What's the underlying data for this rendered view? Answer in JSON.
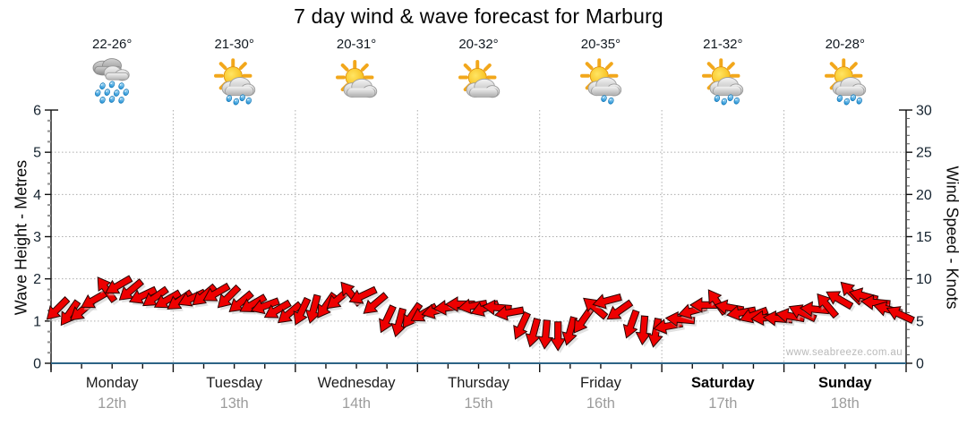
{
  "title": "7 day wind & wave forecast for Marburg",
  "watermark": "www.seabreeze.com.au",
  "axes": {
    "left": {
      "label": "Wave Height - Metres"
    },
    "right": {
      "label": "Wind Speed - Knots"
    }
  },
  "days": [
    {
      "label": "Monday",
      "date": "12th",
      "temp": "22-26°",
      "icon": "rain",
      "weekend": false
    },
    {
      "label": "Tuesday",
      "date": "13th",
      "temp": "21-30°",
      "icon": "sun-cloud-rain",
      "weekend": false
    },
    {
      "label": "Wednesday",
      "date": "14th",
      "temp": "20-31°",
      "icon": "sun-cloud",
      "weekend": false
    },
    {
      "label": "Thursday",
      "date": "15th",
      "temp": "20-32°",
      "icon": "sun-cloud",
      "weekend": false
    },
    {
      "label": "Friday",
      "date": "16th",
      "temp": "20-35°",
      "icon": "sun-cloud-drizzle",
      "weekend": false
    },
    {
      "label": "Saturday",
      "date": "17th",
      "temp": "21-32°",
      "icon": "sun-cloud-rain",
      "weekend": true
    },
    {
      "label": "Sunday",
      "date": "18th",
      "temp": "20-28°",
      "icon": "sun-cloud-rain",
      "weekend": true
    }
  ],
  "chart_data": {
    "type": "scatter",
    "subtype": "wind-direction-arrows",
    "title": "7 day wind & wave forecast for Marburg",
    "categories": [
      "Monday 12th",
      "Tuesday 13th",
      "Wednesday 14th",
      "Thursday 15th",
      "Friday 16th",
      "Saturday 17th",
      "Sunday 18th"
    ],
    "samples_per_day": 10,
    "y_left": {
      "label": "Wave Height - Metres",
      "min": 0,
      "max": 6,
      "tick_step": 1,
      "minor_step": 0.25
    },
    "y_right": {
      "label": "Wind Speed - Knots",
      "min": 0,
      "max": 30,
      "tick_step": 5,
      "minor_step": 1
    },
    "grid": true,
    "marker": "arrow",
    "marker_color": "#ee0000",
    "wind_knots": [
      6.4,
      5.9,
      6.2,
      7.5,
      8.8,
      9.2,
      8.6,
      8.0,
      7.8,
      7.5,
      7.4,
      7.7,
      8.0,
      8.3,
      7.8,
      7.2,
      7.0,
      6.8,
      6.3,
      5.9,
      6.1,
      6.4,
      6.8,
      7.6,
      8.3,
      8.0,
      7.0,
      5.2,
      4.8,
      5.6,
      5.9,
      6.2,
      6.6,
      7.0,
      6.8,
      6.5,
      6.6,
      6.0,
      4.4,
      3.6,
      3.4,
      3.2,
      3.8,
      5.0,
      6.6,
      7.4,
      6.2,
      4.6,
      3.9,
      3.6,
      4.4,
      5.2,
      6.2,
      6.9,
      7.3,
      6.6,
      6.0,
      5.7,
      5.4,
      5.3,
      5.6,
      6.0,
      6.4,
      6.9,
      7.6,
      8.4,
      8.0,
      7.2,
      6.4,
      5.8
    ],
    "wind_dir_deg": [
      135,
      125,
      140,
      150,
      235,
      150,
      140,
      155,
      145,
      150,
      145,
      155,
      140,
      150,
      135,
      140,
      150,
      160,
      150,
      140,
      115,
      105,
      125,
      140,
      230,
      155,
      140,
      115,
      105,
      125,
      150,
      165,
      175,
      180,
      170,
      160,
      185,
      170,
      115,
      105,
      95,
      90,
      105,
      125,
      220,
      165,
      145,
      110,
      95,
      100,
      170,
      185,
      165,
      180,
      235,
      190,
      170,
      160,
      175,
      185,
      190,
      205,
      185,
      230,
      210,
      225,
      195,
      185,
      195,
      205
    ]
  },
  "colors": {
    "arrow_red": "#ee0000",
    "arrow_outline": "#2a0300",
    "x_axis_blue": "#2d6486",
    "grid_gray": "#adadad",
    "date_gray": "#9c9c9c",
    "watermark_gray": "#b9b9b9"
  }
}
